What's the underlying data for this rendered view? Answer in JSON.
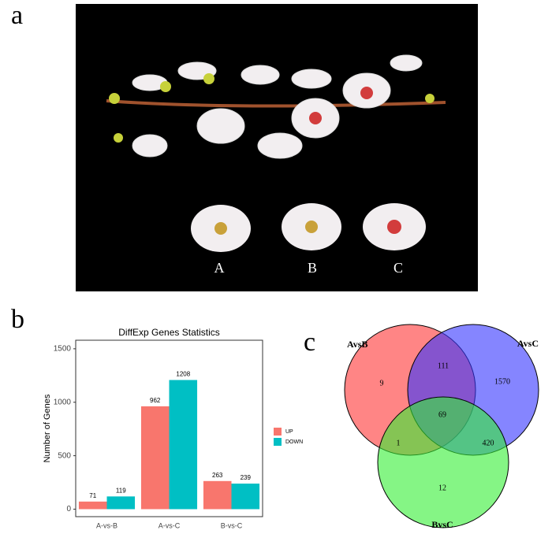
{
  "panel_labels": [
    "a",
    "b",
    "c"
  ],
  "photo": {
    "labels": [
      "A",
      "B",
      "C"
    ]
  },
  "chart_data": [
    {
      "type": "bar",
      "title": "DiffExp Genes Statistics",
      "y_label": "Number of Genes",
      "categories": [
        "A-vs-B",
        "A-vs-C",
        "B-vs-C"
      ],
      "series": [
        {
          "name": "UP",
          "color": "#F8766D",
          "values": [
            71,
            962,
            263
          ]
        },
        {
          "name": "DOWN",
          "color": "#00BFC4",
          "values": [
            119,
            1208,
            239
          ]
        }
      ],
      "ylim": [
        -70,
        1580
      ],
      "yticks": [
        0,
        500,
        1000,
        1500
      ],
      "grid": false,
      "legend": "right"
    },
    {
      "type": "venn",
      "sets": [
        {
          "name": "AvsB",
          "color": "#ff3333"
        },
        {
          "name": "AvsC",
          "color": "#3333ff"
        },
        {
          "name": "BvsC",
          "color": "#33ee33"
        }
      ],
      "values": [
        9,
        111,
        1570,
        69,
        1,
        420,
        12
      ]
    }
  ]
}
